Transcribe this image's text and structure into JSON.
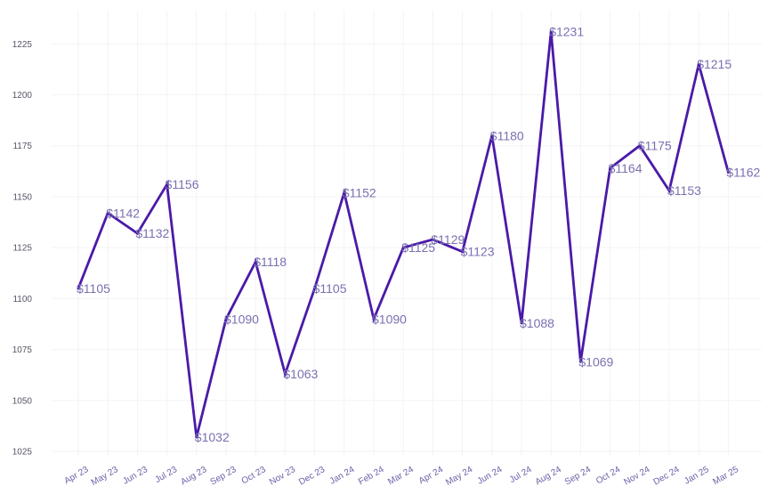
{
  "chart_data": {
    "type": "line",
    "title": "",
    "xlabel": "",
    "ylabel": "",
    "categories": [
      "Apr 23",
      "May 23",
      "Jun 23",
      "Jul 23",
      "Aug 23",
      "Sep 23",
      "Oct 23",
      "Nov 23",
      "Dec 23",
      "Jan 24",
      "Feb 24",
      "Mar 24",
      "Apr 24",
      "May 24",
      "Jun 24",
      "Jul 24",
      "Aug 24",
      "Sep 24",
      "Oct 24",
      "Nov 24",
      "Dec 24",
      "Jan 25",
      "Mar 25"
    ],
    "values": [
      1105,
      1142,
      1132,
      1156,
      1032,
      1090,
      1118,
      1063,
      1105,
      1152,
      1090,
      1125,
      1129,
      1123,
      1180,
      1088,
      1231,
      1069,
      1164,
      1175,
      1153,
      1215,
      1162
    ],
    "data_labels": [
      "$1105",
      "$1142",
      "$1132",
      "$1156",
      "$1032",
      "$1090",
      "$1118",
      "$1063",
      "$1105",
      "$1152",
      "$1090",
      "$1125",
      "$1129",
      "$1123",
      "$1180",
      "$1088",
      "$1231",
      "$1069",
      "$1164",
      "$1175",
      "$1153",
      "$1215",
      "$1162"
    ],
    "yticks": [
      1025,
      1050,
      1075,
      1100,
      1125,
      1150,
      1175,
      1200,
      1225
    ],
    "ytick_labels": [
      "1025",
      "1050",
      "1075",
      "1100",
      "1125",
      "1150",
      "1175",
      "1200",
      "1225"
    ],
    "ylim": [
      1025,
      1231
    ],
    "grid": true,
    "legend": "none",
    "colors": {
      "line": "#4a1aa8",
      "label": "#7a70b0",
      "tick": "#6a62a8",
      "grid": "#f3f3f8"
    }
  }
}
